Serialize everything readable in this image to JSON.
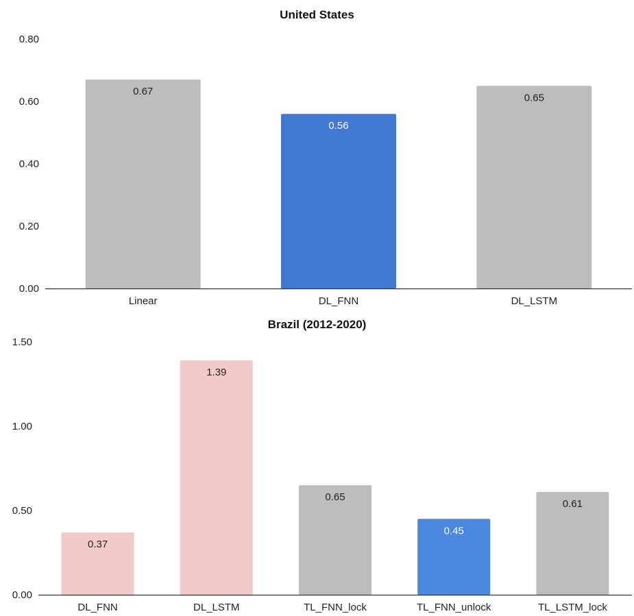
{
  "chart_data": [
    {
      "type": "bar",
      "title": "United States",
      "categories": [
        "Linear",
        "DL_FNN",
        "DL_LSTM"
      ],
      "values": [
        0.67,
        0.56,
        0.65
      ],
      "data_labels": [
        "0.67",
        "0.56",
        "0.65"
      ],
      "bar_colors": [
        "#bdbdbd",
        "#4179d4",
        "#bdbdbd"
      ],
      "label_colors": [
        "#222222",
        "#ffffff",
        "#222222"
      ],
      "ylim": [
        0,
        0.8
      ],
      "yticks": [
        "0.00",
        "0.20",
        "0.40",
        "0.60",
        "0.80"
      ],
      "ytick_values": [
        0,
        0.2,
        0.4,
        0.6,
        0.8
      ],
      "xlabel": "",
      "ylabel": "",
      "grid": false
    },
    {
      "type": "bar",
      "title": "Brazil (2012-2020)",
      "categories": [
        "DL_FNN",
        "DL_LSTM",
        "TL_FNN_lock",
        "TL_FNN_unlock",
        "TL_LSTM_lock"
      ],
      "values": [
        0.37,
        1.39,
        0.65,
        0.45,
        0.61
      ],
      "data_labels": [
        "0.37",
        "1.39",
        "0.65",
        "0.45",
        "0.61"
      ],
      "bar_colors": [
        "#f2caca",
        "#f2caca",
        "#bdbdbd",
        "#4a87e0",
        "#bdbdbd"
      ],
      "label_colors": [
        "#222222",
        "#222222",
        "#222222",
        "#ffffff",
        "#222222"
      ],
      "ylim": [
        0,
        1.5
      ],
      "yticks": [
        "0.00",
        "0.50",
        "1.00",
        "1.50"
      ],
      "ytick_values": [
        0,
        0.5,
        1.0,
        1.5
      ],
      "xlabel": "",
      "ylabel": "",
      "grid": false
    }
  ]
}
